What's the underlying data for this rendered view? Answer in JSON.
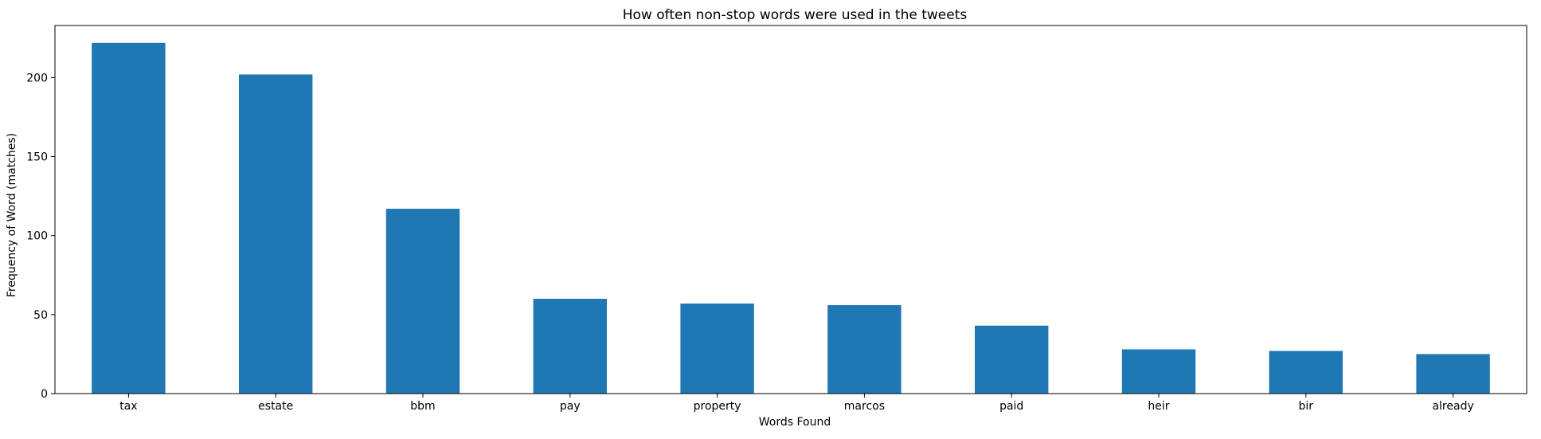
{
  "chart_data": {
    "type": "bar",
    "title": "How often non-stop words were used in the tweets",
    "xlabel": "Words Found",
    "ylabel": "Frequency of Word (matches)",
    "categories": [
      "tax",
      "estate",
      "bbm",
      "pay",
      "property",
      "marcos",
      "paid",
      "heir",
      "bir",
      "already"
    ],
    "values": [
      222,
      202,
      117,
      60,
      57,
      56,
      43,
      28,
      27,
      25
    ],
    "ylim": [
      0,
      233
    ],
    "yticks": [
      0,
      50,
      100,
      150,
      200
    ],
    "bar_color": "#1f77b4",
    "grid": false,
    "legend": "none"
  }
}
